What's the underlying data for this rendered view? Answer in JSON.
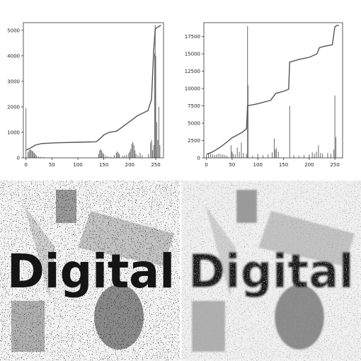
{
  "chart_data": [
    {
      "type": "bar",
      "overlay": "cumulative-line",
      "xlim": [
        -5,
        265
      ],
      "ylim": [
        0,
        5300
      ],
      "xticks": [
        0,
        50,
        100,
        150,
        200,
        250
      ],
      "yticks": [
        0,
        1000,
        2000,
        3000,
        4000,
        5000
      ],
      "grid": false,
      "bars": [
        [
          0,
          1950
        ],
        [
          4,
          220
        ],
        [
          6,
          300
        ],
        [
          8,
          330
        ],
        [
          10,
          310
        ],
        [
          12,
          280
        ],
        [
          14,
          240
        ],
        [
          16,
          200
        ],
        [
          18,
          150
        ],
        [
          20,
          100
        ],
        [
          24,
          60
        ],
        [
          28,
          40
        ],
        [
          34,
          30
        ],
        [
          140,
          150
        ],
        [
          142,
          300
        ],
        [
          144,
          330
        ],
        [
          146,
          280
        ],
        [
          148,
          200
        ],
        [
          150,
          140
        ],
        [
          154,
          90
        ],
        [
          158,
          60
        ],
        [
          164,
          40
        ],
        [
          170,
          100
        ],
        [
          174,
          200
        ],
        [
          176,
          250
        ],
        [
          178,
          200
        ],
        [
          180,
          150
        ],
        [
          186,
          80
        ],
        [
          190,
          100
        ],
        [
          194,
          120
        ],
        [
          198,
          180
        ],
        [
          200,
          250
        ],
        [
          202,
          350
        ],
        [
          204,
          550
        ],
        [
          206,
          620
        ],
        [
          208,
          500
        ],
        [
          210,
          300
        ],
        [
          212,
          150
        ],
        [
          216,
          100
        ],
        [
          220,
          200
        ],
        [
          224,
          100
        ],
        [
          236,
          150
        ],
        [
          240,
          600
        ],
        [
          242,
          700
        ],
        [
          244,
          300
        ],
        [
          246,
          500
        ],
        [
          248,
          4100
        ],
        [
          249,
          5200
        ],
        [
          250,
          4000
        ],
        [
          252,
          1400
        ],
        [
          254,
          700
        ],
        [
          256,
          2000
        ],
        [
          258,
          500
        ]
      ],
      "line": [
        [
          0,
          300
        ],
        [
          10,
          400
        ],
        [
          18,
          500
        ],
        [
          30,
          560
        ],
        [
          60,
          590
        ],
        [
          100,
          610
        ],
        [
          135,
          630
        ],
        [
          140,
          700
        ],
        [
          150,
          900
        ],
        [
          160,
          1000
        ],
        [
          175,
          1050
        ],
        [
          185,
          1200
        ],
        [
          195,
          1350
        ],
        [
          205,
          1500
        ],
        [
          215,
          1650
        ],
        [
          225,
          1750
        ],
        [
          235,
          1850
        ],
        [
          242,
          2300
        ],
        [
          246,
          4200
        ],
        [
          249,
          5050
        ],
        [
          252,
          5100
        ],
        [
          256,
          5150
        ],
        [
          260,
          5200
        ]
      ]
    },
    {
      "type": "bar",
      "overlay": "cumulative-line",
      "xlim": [
        -5,
        265
      ],
      "ylim": [
        0,
        19500
      ],
      "xticks": [
        0,
        50,
        100,
        150,
        200,
        250
      ],
      "yticks": [
        0,
        2500,
        5000,
        7500,
        10000,
        12500,
        15000,
        17500
      ],
      "grid": false,
      "bars": [
        [
          0,
          400
        ],
        [
          4,
          700
        ],
        [
          8,
          600
        ],
        [
          12,
          500
        ],
        [
          16,
          400
        ],
        [
          20,
          500
        ],
        [
          24,
          600
        ],
        [
          28,
          500
        ],
        [
          32,
          500
        ],
        [
          36,
          400
        ],
        [
          40,
          300
        ],
        [
          48,
          1800
        ],
        [
          50,
          900
        ],
        [
          52,
          600
        ],
        [
          56,
          500
        ],
        [
          60,
          1500
        ],
        [
          64,
          900
        ],
        [
          68,
          2200
        ],
        [
          72,
          700
        ],
        [
          78,
          600
        ],
        [
          80,
          19000
        ],
        [
          81,
          10500
        ],
        [
          90,
          300
        ],
        [
          100,
          600
        ],
        [
          110,
          400
        ],
        [
          120,
          500
        ],
        [
          128,
          800
        ],
        [
          132,
          2800
        ],
        [
          134,
          1200
        ],
        [
          136,
          1400
        ],
        [
          140,
          900
        ],
        [
          162,
          7500
        ],
        [
          170,
          400
        ],
        [
          180,
          300
        ],
        [
          190,
          400
        ],
        [
          200,
          500
        ],
        [
          206,
          800
        ],
        [
          210,
          600
        ],
        [
          214,
          900
        ],
        [
          218,
          1800
        ],
        [
          222,
          700
        ],
        [
          226,
          600
        ],
        [
          236,
          700
        ],
        [
          242,
          600
        ],
        [
          248,
          1200
        ],
        [
          250,
          9000
        ],
        [
          252,
          3000
        ]
      ],
      "line": [
        [
          0,
          500
        ],
        [
          10,
          800
        ],
        [
          20,
          1200
        ],
        [
          30,
          1700
        ],
        [
          40,
          2300
        ],
        [
          50,
          2900
        ],
        [
          60,
          3300
        ],
        [
          70,
          3700
        ],
        [
          78,
          4200
        ],
        [
          80,
          7500
        ],
        [
          100,
          7800
        ],
        [
          125,
          8300
        ],
        [
          135,
          9300
        ],
        [
          150,
          9600
        ],
        [
          160,
          9900
        ],
        [
          162,
          13800
        ],
        [
          180,
          14200
        ],
        [
          200,
          14500
        ],
        [
          215,
          15000
        ],
        [
          220,
          15900
        ],
        [
          230,
          16100
        ],
        [
          245,
          16300
        ],
        [
          250,
          18900
        ],
        [
          254,
          19100
        ],
        [
          258,
          19100
        ]
      ]
    }
  ],
  "images": [
    {
      "text": "Digital",
      "noise": "salt-and-pepper"
    },
    {
      "text": "Digital",
      "noise": "smoothed"
    }
  ]
}
